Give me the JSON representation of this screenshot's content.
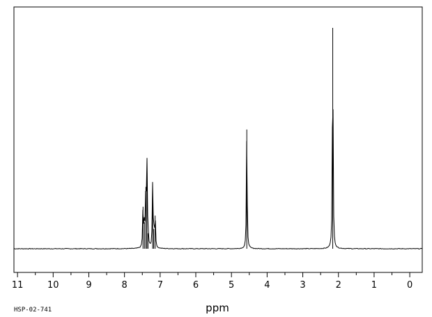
{
  "chart_data": {
    "type": "line",
    "title": "",
    "xlabel": "ppm",
    "ylabel": "",
    "sample_id": "HSP-02-741",
    "xlim": [
      11.1,
      -0.35
    ],
    "x_reversed": true,
    "ylim": [
      -0.08,
      1.05
    ],
    "grid": false,
    "x_ticks": [
      11,
      10,
      9,
      8,
      7,
      6,
      5,
      4,
      3,
      2,
      1,
      0
    ],
    "x_tick_labels": [
      "11",
      "10",
      "9",
      "8",
      "7",
      "6",
      "5",
      "4",
      "3",
      "2",
      "1",
      "0"
    ],
    "baseline": 0.0,
    "series": [
      {
        "peaks": [
          {
            "ppm": 7.48,
            "height": 0.19
          },
          {
            "ppm": 7.44,
            "height": 0.12
          },
          {
            "ppm": 7.4,
            "height": 0.28
          },
          {
            "ppm": 7.37,
            "height": 0.37
          },
          {
            "ppm": 7.34,
            "height": 0.07
          },
          {
            "ppm": 7.21,
            "height": 0.29
          },
          {
            "ppm": 7.18,
            "height": 0.09
          },
          {
            "ppm": 7.14,
            "height": 0.15
          },
          {
            "ppm": 4.57,
            "height": 0.54
          },
          {
            "ppm": 2.16,
            "height": 1.0
          }
        ],
        "color": "#000000"
      }
    ]
  }
}
